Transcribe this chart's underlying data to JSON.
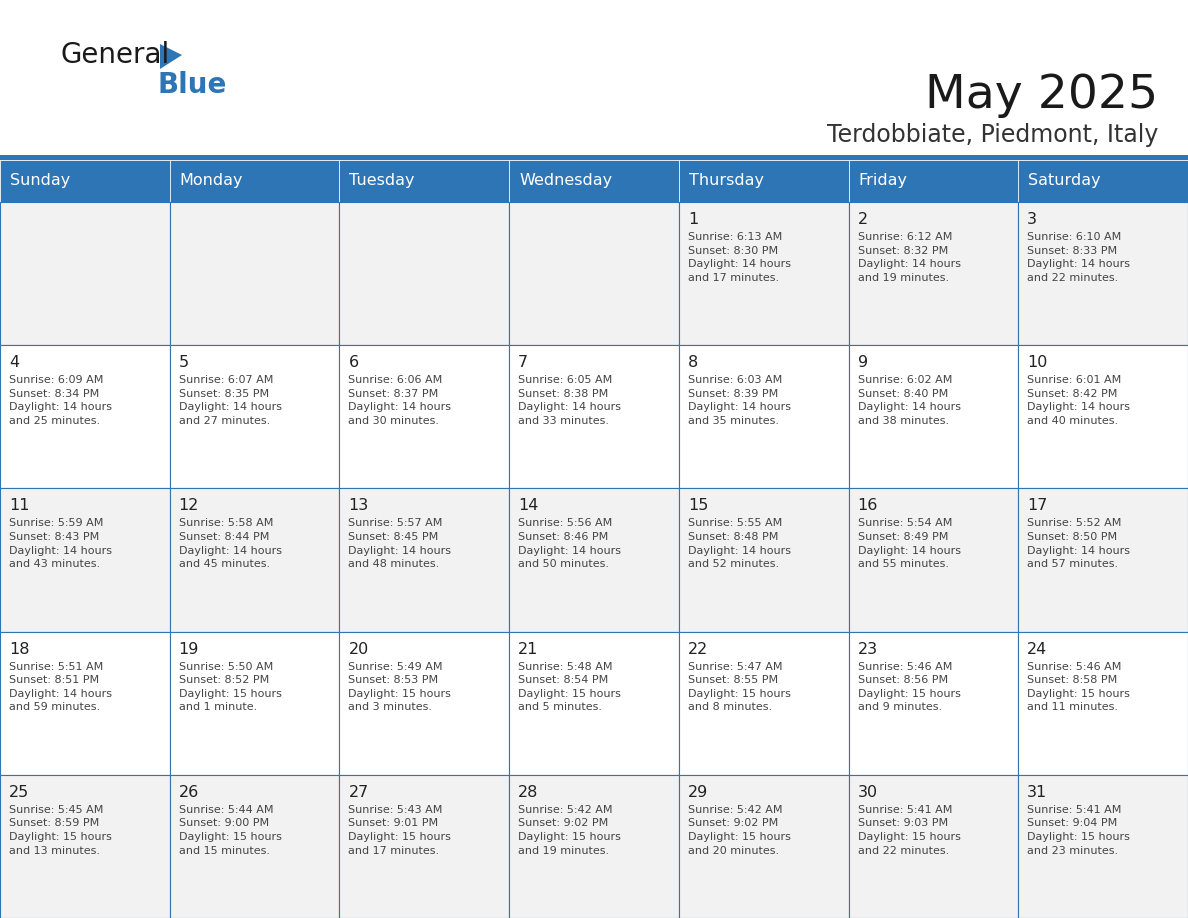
{
  "title": "May 2025",
  "subtitle": "Terdobbiate, Piedmont, Italy",
  "header_color": "#2e75b6",
  "header_text_color": "#ffffff",
  "day_names": [
    "Sunday",
    "Monday",
    "Tuesday",
    "Wednesday",
    "Thursday",
    "Friday",
    "Saturday"
  ],
  "bg_color": "#ffffff",
  "cell_bg_even": "#ffffff",
  "cell_bg_odd": "#f2f2f2",
  "grid_color": "#2e75b6",
  "text_color": "#333333",
  "weeks": [
    [
      {
        "day": "",
        "info": ""
      },
      {
        "day": "",
        "info": ""
      },
      {
        "day": "",
        "info": ""
      },
      {
        "day": "",
        "info": ""
      },
      {
        "day": "1",
        "info": "Sunrise: 6:13 AM\nSunset: 8:30 PM\nDaylight: 14 hours\nand 17 minutes."
      },
      {
        "day": "2",
        "info": "Sunrise: 6:12 AM\nSunset: 8:32 PM\nDaylight: 14 hours\nand 19 minutes."
      },
      {
        "day": "3",
        "info": "Sunrise: 6:10 AM\nSunset: 8:33 PM\nDaylight: 14 hours\nand 22 minutes."
      }
    ],
    [
      {
        "day": "4",
        "info": "Sunrise: 6:09 AM\nSunset: 8:34 PM\nDaylight: 14 hours\nand 25 minutes."
      },
      {
        "day": "5",
        "info": "Sunrise: 6:07 AM\nSunset: 8:35 PM\nDaylight: 14 hours\nand 27 minutes."
      },
      {
        "day": "6",
        "info": "Sunrise: 6:06 AM\nSunset: 8:37 PM\nDaylight: 14 hours\nand 30 minutes."
      },
      {
        "day": "7",
        "info": "Sunrise: 6:05 AM\nSunset: 8:38 PM\nDaylight: 14 hours\nand 33 minutes."
      },
      {
        "day": "8",
        "info": "Sunrise: 6:03 AM\nSunset: 8:39 PM\nDaylight: 14 hours\nand 35 minutes."
      },
      {
        "day": "9",
        "info": "Sunrise: 6:02 AM\nSunset: 8:40 PM\nDaylight: 14 hours\nand 38 minutes."
      },
      {
        "day": "10",
        "info": "Sunrise: 6:01 AM\nSunset: 8:42 PM\nDaylight: 14 hours\nand 40 minutes."
      }
    ],
    [
      {
        "day": "11",
        "info": "Sunrise: 5:59 AM\nSunset: 8:43 PM\nDaylight: 14 hours\nand 43 minutes."
      },
      {
        "day": "12",
        "info": "Sunrise: 5:58 AM\nSunset: 8:44 PM\nDaylight: 14 hours\nand 45 minutes."
      },
      {
        "day": "13",
        "info": "Sunrise: 5:57 AM\nSunset: 8:45 PM\nDaylight: 14 hours\nand 48 minutes."
      },
      {
        "day": "14",
        "info": "Sunrise: 5:56 AM\nSunset: 8:46 PM\nDaylight: 14 hours\nand 50 minutes."
      },
      {
        "day": "15",
        "info": "Sunrise: 5:55 AM\nSunset: 8:48 PM\nDaylight: 14 hours\nand 52 minutes."
      },
      {
        "day": "16",
        "info": "Sunrise: 5:54 AM\nSunset: 8:49 PM\nDaylight: 14 hours\nand 55 minutes."
      },
      {
        "day": "17",
        "info": "Sunrise: 5:52 AM\nSunset: 8:50 PM\nDaylight: 14 hours\nand 57 minutes."
      }
    ],
    [
      {
        "day": "18",
        "info": "Sunrise: 5:51 AM\nSunset: 8:51 PM\nDaylight: 14 hours\nand 59 minutes."
      },
      {
        "day": "19",
        "info": "Sunrise: 5:50 AM\nSunset: 8:52 PM\nDaylight: 15 hours\nand 1 minute."
      },
      {
        "day": "20",
        "info": "Sunrise: 5:49 AM\nSunset: 8:53 PM\nDaylight: 15 hours\nand 3 minutes."
      },
      {
        "day": "21",
        "info": "Sunrise: 5:48 AM\nSunset: 8:54 PM\nDaylight: 15 hours\nand 5 minutes."
      },
      {
        "day": "22",
        "info": "Sunrise: 5:47 AM\nSunset: 8:55 PM\nDaylight: 15 hours\nand 8 minutes."
      },
      {
        "day": "23",
        "info": "Sunrise: 5:46 AM\nSunset: 8:56 PM\nDaylight: 15 hours\nand 9 minutes."
      },
      {
        "day": "24",
        "info": "Sunrise: 5:46 AM\nSunset: 8:58 PM\nDaylight: 15 hours\nand 11 minutes."
      }
    ],
    [
      {
        "day": "25",
        "info": "Sunrise: 5:45 AM\nSunset: 8:59 PM\nDaylight: 15 hours\nand 13 minutes."
      },
      {
        "day": "26",
        "info": "Sunrise: 5:44 AM\nSunset: 9:00 PM\nDaylight: 15 hours\nand 15 minutes."
      },
      {
        "day": "27",
        "info": "Sunrise: 5:43 AM\nSunset: 9:01 PM\nDaylight: 15 hours\nand 17 minutes."
      },
      {
        "day": "28",
        "info": "Sunrise: 5:42 AM\nSunset: 9:02 PM\nDaylight: 15 hours\nand 19 minutes."
      },
      {
        "day": "29",
        "info": "Sunrise: 5:42 AM\nSunset: 9:02 PM\nDaylight: 15 hours\nand 20 minutes."
      },
      {
        "day": "30",
        "info": "Sunrise: 5:41 AM\nSunset: 9:03 PM\nDaylight: 15 hours\nand 22 minutes."
      },
      {
        "day": "31",
        "info": "Sunrise: 5:41 AM\nSunset: 9:04 PM\nDaylight: 15 hours\nand 23 minutes."
      }
    ]
  ]
}
